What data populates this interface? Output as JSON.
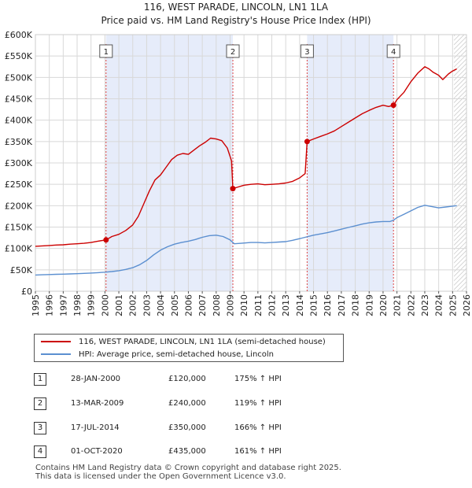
{
  "title": "116, WEST PARADE, LINCOLN, LN1 1LA",
  "subtitle": "Price paid vs. HM Land Registry's House Price Index (HPI)",
  "colors": {
    "property": "#cc0000",
    "hpi": "#5b8fd0",
    "shade": "#e6ecfa",
    "grid": "#d8d8d8"
  },
  "chart_data": {
    "type": "line",
    "title": "116, WEST PARADE, LINCOLN, LN1 1LA",
    "subtitle": "Price paid vs. HM Land Registry's House Price Index (HPI)",
    "xlabel": "",
    "ylabel": "",
    "xlim": [
      1995,
      2026
    ],
    "ylim": [
      0,
      600000
    ],
    "y_ticks": [
      {
        "value": 0,
        "label": "£0"
      },
      {
        "value": 50000,
        "label": "£50K"
      },
      {
        "value": 100000,
        "label": "£100K"
      },
      {
        "value": 150000,
        "label": "£150K"
      },
      {
        "value": 200000,
        "label": "£200K"
      },
      {
        "value": 250000,
        "label": "£250K"
      },
      {
        "value": 300000,
        "label": "£300K"
      },
      {
        "value": 350000,
        "label": "£350K"
      },
      {
        "value": 400000,
        "label": "£400K"
      },
      {
        "value": 450000,
        "label": "£450K"
      },
      {
        "value": 500000,
        "label": "£500K"
      },
      {
        "value": 550000,
        "label": "£550K"
      },
      {
        "value": 600000,
        "label": "£600K"
      }
    ],
    "x_ticks": [
      "1995",
      "1996",
      "1997",
      "1998",
      "1999",
      "2000",
      "2001",
      "2002",
      "2003",
      "2004",
      "2005",
      "2006",
      "2007",
      "2008",
      "2009",
      "2010",
      "2011",
      "2012",
      "2013",
      "2014",
      "2015",
      "2016",
      "2017",
      "2018",
      "2019",
      "2020",
      "2021",
      "2022",
      "2023",
      "2024",
      "2025",
      "2026"
    ],
    "shaded_periods": [
      [
        2000.08,
        2009.2
      ],
      [
        2014.54,
        2020.75
      ]
    ],
    "forecast_start": 2025.1,
    "series": [
      {
        "name": "116, WEST PARADE, LINCOLN, LN1 1LA (semi-detached house)",
        "color": "#cc0000",
        "points": [
          [
            1995.0,
            105000
          ],
          [
            1995.5,
            106000
          ],
          [
            1996.0,
            107000
          ],
          [
            1996.5,
            108000
          ],
          [
            1997.0,
            108500
          ],
          [
            1997.5,
            110000
          ],
          [
            1998.0,
            111000
          ],
          [
            1998.5,
            112000
          ],
          [
            1999.0,
            114000
          ],
          [
            1999.5,
            117000
          ],
          [
            2000.08,
            120000
          ],
          [
            2000.5,
            128000
          ],
          [
            2001.0,
            133000
          ],
          [
            2001.5,
            142000
          ],
          [
            2002.0,
            155000
          ],
          [
            2002.4,
            175000
          ],
          [
            2002.8,
            205000
          ],
          [
            2003.2,
            235000
          ],
          [
            2003.6,
            260000
          ],
          [
            2004.0,
            272000
          ],
          [
            2004.4,
            290000
          ],
          [
            2004.8,
            308000
          ],
          [
            2005.2,
            318000
          ],
          [
            2005.6,
            322000
          ],
          [
            2006.0,
            320000
          ],
          [
            2006.4,
            330000
          ],
          [
            2006.8,
            340000
          ],
          [
            2007.2,
            348000
          ],
          [
            2007.6,
            358000
          ],
          [
            2008.0,
            356000
          ],
          [
            2008.4,
            352000
          ],
          [
            2008.8,
            335000
          ],
          [
            2009.1,
            305000
          ],
          [
            2009.2,
            240000
          ],
          [
            2009.5,
            243000
          ],
          [
            2010.0,
            248000
          ],
          [
            2010.5,
            250000
          ],
          [
            2011.0,
            251000
          ],
          [
            2011.5,
            249000
          ],
          [
            2012.0,
            250000
          ],
          [
            2012.5,
            251000
          ],
          [
            2013.0,
            253000
          ],
          [
            2013.5,
            257000
          ],
          [
            2014.0,
            265000
          ],
          [
            2014.4,
            275000
          ],
          [
            2014.54,
            350000
          ],
          [
            2015.0,
            356000
          ],
          [
            2015.5,
            362000
          ],
          [
            2016.0,
            368000
          ],
          [
            2016.5,
            375000
          ],
          [
            2017.0,
            385000
          ],
          [
            2017.5,
            395000
          ],
          [
            2018.0,
            405000
          ],
          [
            2018.5,
            415000
          ],
          [
            2019.0,
            423000
          ],
          [
            2019.5,
            430000
          ],
          [
            2020.0,
            435000
          ],
          [
            2020.4,
            432000
          ],
          [
            2020.75,
            435000
          ],
          [
            2021.0,
            448000
          ],
          [
            2021.5,
            465000
          ],
          [
            2022.0,
            490000
          ],
          [
            2022.5,
            510000
          ],
          [
            2023.0,
            525000
          ],
          [
            2023.3,
            520000
          ],
          [
            2023.6,
            512000
          ],
          [
            2024.0,
            505000
          ],
          [
            2024.3,
            495000
          ],
          [
            2024.7,
            508000
          ],
          [
            2025.0,
            515000
          ],
          [
            2025.3,
            520000
          ]
        ]
      },
      {
        "name": "HPI: Average price, semi-detached house, Lincoln",
        "color": "#5b8fd0",
        "points": [
          [
            1995.0,
            38000
          ],
          [
            1995.5,
            38500
          ],
          [
            1996.0,
            39000
          ],
          [
            1996.5,
            39500
          ],
          [
            1997.0,
            40000
          ],
          [
            1997.5,
            40500
          ],
          [
            1998.0,
            41000
          ],
          [
            1998.5,
            41800
          ],
          [
            1999.0,
            42500
          ],
          [
            1999.5,
            43500
          ],
          [
            2000.0,
            44500
          ],
          [
            2000.5,
            46000
          ],
          [
            2001.0,
            48000
          ],
          [
            2001.5,
            51000
          ],
          [
            2002.0,
            55000
          ],
          [
            2002.5,
            62000
          ],
          [
            2003.0,
            72000
          ],
          [
            2003.5,
            85000
          ],
          [
            2004.0,
            96000
          ],
          [
            2004.5,
            104000
          ],
          [
            2005.0,
            110000
          ],
          [
            2005.5,
            114000
          ],
          [
            2006.0,
            117000
          ],
          [
            2006.5,
            121000
          ],
          [
            2007.0,
            126000
          ],
          [
            2007.5,
            130000
          ],
          [
            2008.0,
            131000
          ],
          [
            2008.5,
            128000
          ],
          [
            2009.0,
            120000
          ],
          [
            2009.3,
            111000
          ],
          [
            2009.8,
            112000
          ],
          [
            2010.5,
            114000
          ],
          [
            2011.0,
            114000
          ],
          [
            2011.5,
            113000
          ],
          [
            2012.0,
            114000
          ],
          [
            2012.5,
            115000
          ],
          [
            2013.0,
            116000
          ],
          [
            2013.5,
            119000
          ],
          [
            2014.0,
            123000
          ],
          [
            2014.5,
            127000
          ],
          [
            2015.0,
            131000
          ],
          [
            2015.5,
            134000
          ],
          [
            2016.0,
            137000
          ],
          [
            2016.5,
            141000
          ],
          [
            2017.0,
            145000
          ],
          [
            2017.5,
            149000
          ],
          [
            2018.0,
            153000
          ],
          [
            2018.5,
            157000
          ],
          [
            2019.0,
            160000
          ],
          [
            2019.5,
            162000
          ],
          [
            2020.0,
            163000
          ],
          [
            2020.5,
            163000
          ],
          [
            2020.75,
            166000
          ],
          [
            2021.0,
            172000
          ],
          [
            2021.5,
            180000
          ],
          [
            2022.0,
            188000
          ],
          [
            2022.5,
            196000
          ],
          [
            2023.0,
            201000
          ],
          [
            2023.5,
            198000
          ],
          [
            2024.0,
            195000
          ],
          [
            2024.5,
            197000
          ],
          [
            2025.0,
            199000
          ],
          [
            2025.3,
            200000
          ]
        ]
      }
    ],
    "sales": [
      {
        "num": "1",
        "x": 2000.08,
        "y": 120000
      },
      {
        "num": "2",
        "x": 2009.2,
        "y": 240000
      },
      {
        "num": "3",
        "x": 2014.54,
        "y": 350000
      },
      {
        "num": "4",
        "x": 2020.75,
        "y": 435000
      }
    ]
  },
  "legend": {
    "property_label": "116, WEST PARADE, LINCOLN, LN1 1LA (semi-detached house)",
    "hpi_label": "HPI: Average price, semi-detached house, Lincoln"
  },
  "transactions": [
    {
      "num": "1",
      "date": "28-JAN-2000",
      "price": "£120,000",
      "hpi": "175% ↑ HPI"
    },
    {
      "num": "2",
      "date": "13-MAR-2009",
      "price": "£240,000",
      "hpi": "119% ↑ HPI"
    },
    {
      "num": "3",
      "date": "17-JUL-2014",
      "price": "£350,000",
      "hpi": "166% ↑ HPI"
    },
    {
      "num": "4",
      "date": "01-OCT-2020",
      "price": "£435,000",
      "hpi": "161% ↑ HPI"
    }
  ],
  "footer": {
    "line1": "Contains HM Land Registry data © Crown copyright and database right 2025.",
    "line2": "This data is licensed under the Open Government Licence v3.0."
  }
}
